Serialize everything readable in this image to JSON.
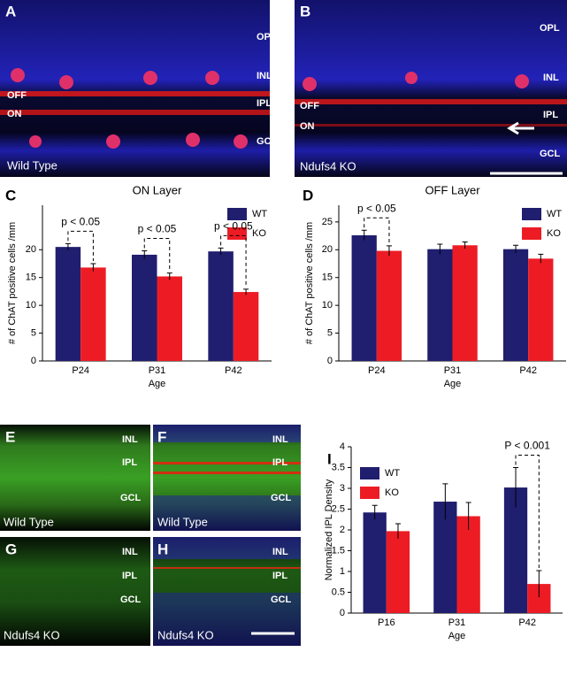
{
  "images": [
    {
      "label": "A",
      "tags": [
        "OPL",
        "INL",
        "OFF",
        "IPL",
        "ON",
        "GCL"
      ],
      "caption": "Wild Type"
    },
    {
      "label": "B",
      "tags": [
        "OPL",
        "INL",
        "OFF",
        "IPL",
        "ON",
        "GCL"
      ],
      "caption": "Ndufs4 KO"
    },
    {
      "label": "E",
      "tags": [
        "INL",
        "IPL",
        "GCL"
      ],
      "caption": "Wild Type"
    },
    {
      "label": "F",
      "tags": [
        "INL",
        "IPL",
        "GCL"
      ],
      "caption": "Wild Type"
    },
    {
      "label": "G",
      "tags": [
        "INL",
        "IPL",
        "GCL"
      ],
      "caption": "Ndufs4 KO"
    },
    {
      "label": "H",
      "tags": [
        "INL",
        "IPL",
        "GCL"
      ],
      "caption": "Ndufs4 KO"
    }
  ],
  "chart_data": [
    {
      "type": "bar",
      "panel": "C",
      "title": "ON Layer",
      "xlabel": "Age",
      "ylabel": "# of ChAT positive cells /mm",
      "categories": [
        "P24",
        "P31",
        "P42"
      ],
      "series": [
        {
          "name": "WT",
          "color": "#201e6e",
          "values": [
            20.5,
            19.1,
            19.7
          ],
          "errors": [
            0.6,
            0.7,
            0.6
          ]
        },
        {
          "name": "KO",
          "color": "#ed1c24",
          "values": [
            16.8,
            15.2,
            12.4
          ],
          "errors": [
            0.7,
            0.6,
            0.5
          ]
        }
      ],
      "ylim": [
        0,
        28
      ],
      "yticks": [
        0,
        5,
        10,
        15,
        20
      ],
      "legend": "upper right",
      "annotations": [
        {
          "text": "p < 0.05",
          "category": "P24"
        },
        {
          "text": "p < 0.05",
          "category": "P31"
        },
        {
          "text": "p < 0.05",
          "category": "P42"
        }
      ]
    },
    {
      "type": "bar",
      "panel": "D",
      "title": "OFF Layer",
      "xlabel": "Age",
      "ylabel": "# of ChAT positive cells /mm",
      "categories": [
        "P24",
        "P31",
        "P42"
      ],
      "series": [
        {
          "name": "WT",
          "color": "#201e6e",
          "values": [
            22.6,
            20.1,
            20.1
          ],
          "errors": [
            0.9,
            0.9,
            0.7
          ]
        },
        {
          "name": "KO",
          "color": "#ed1c24",
          "values": [
            19.8,
            20.8,
            18.4
          ],
          "errors": [
            0.9,
            0.6,
            0.8
          ]
        }
      ],
      "ylim": [
        0,
        28
      ],
      "yticks": [
        0,
        5,
        10,
        15,
        20,
        25
      ],
      "legend": "upper right",
      "annotations": [
        {
          "text": "p < 0.05",
          "category": "P24"
        }
      ]
    },
    {
      "type": "bar",
      "panel": "I",
      "xlabel": "Age",
      "ylabel": "Normalized IPL Density",
      "categories": [
        "P16",
        "P31",
        "P42"
      ],
      "series": [
        {
          "name": "WT",
          "color": "#201e6e",
          "values": [
            2.42,
            2.68,
            3.02
          ],
          "errors": [
            0.17,
            0.43,
            0.48
          ]
        },
        {
          "name": "KO",
          "color": "#ed1c24",
          "values": [
            1.97,
            2.33,
            0.7
          ],
          "errors": [
            0.18,
            0.33,
            0.32
          ]
        }
      ],
      "ylim": [
        0,
        4
      ],
      "yticks": [
        0,
        0.5,
        1,
        1.5,
        2,
        2.5,
        3,
        3.5,
        4
      ],
      "legend": "upper left",
      "annotations": [
        {
          "text": "P < 0.001",
          "category": "P42"
        }
      ]
    }
  ]
}
